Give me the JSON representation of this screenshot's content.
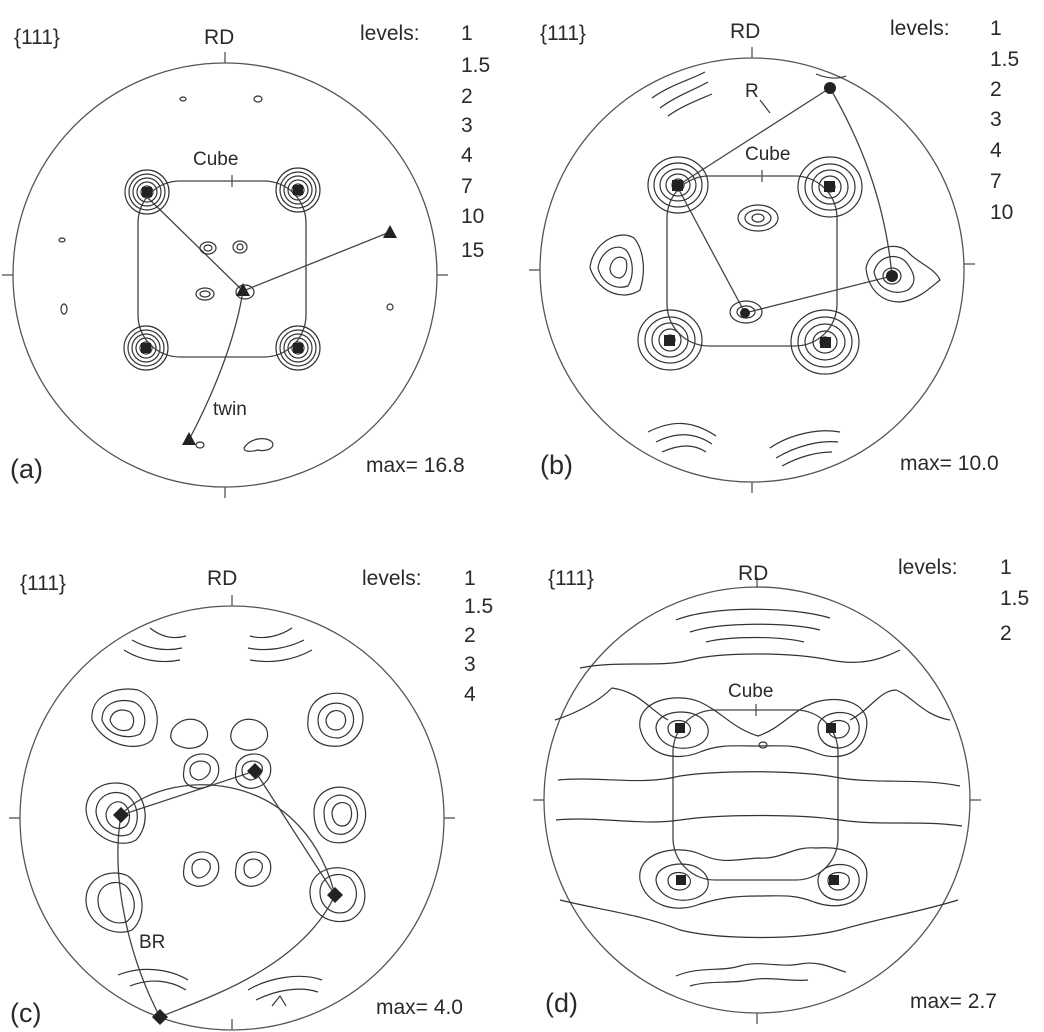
{
  "figure": {
    "panels": [
      {
        "id": "a",
        "label": "(a)",
        "plane": "{111}",
        "direction": "RD",
        "levels_title": "levels:",
        "levels": [
          "1",
          "1.5",
          "2",
          "3",
          "4",
          "7",
          "10",
          "15"
        ],
        "max_text": "max= 16.8",
        "annotations": [
          "Cube",
          "twin"
        ]
      },
      {
        "id": "b",
        "label": "(b)",
        "plane": "{111}",
        "direction": "RD",
        "levels_title": "levels:",
        "levels": [
          "1",
          "1.5",
          "2",
          "3",
          "4",
          "7",
          "10"
        ],
        "max_text": "max= 10.0",
        "annotations": [
          "R",
          "Cube"
        ]
      },
      {
        "id": "c",
        "label": "(c)",
        "plane": "{111}",
        "direction": "RD",
        "levels_title": "levels:",
        "levels": [
          "1",
          "1.5",
          "2",
          "3",
          "4"
        ],
        "max_text": "max= 4.0",
        "annotations": [
          "BR"
        ]
      },
      {
        "id": "d",
        "label": "(d)",
        "plane": "{111}",
        "direction": "RD",
        "levels_title": "levels:",
        "levels": [
          "1",
          "1.5",
          "2"
        ],
        "max_text": "max= 2.7",
        "annotations": [
          "Cube"
        ]
      }
    ],
    "colors": {
      "ink": "#2a2a2a",
      "line": "#444444",
      "background": "#ffffff"
    }
  }
}
